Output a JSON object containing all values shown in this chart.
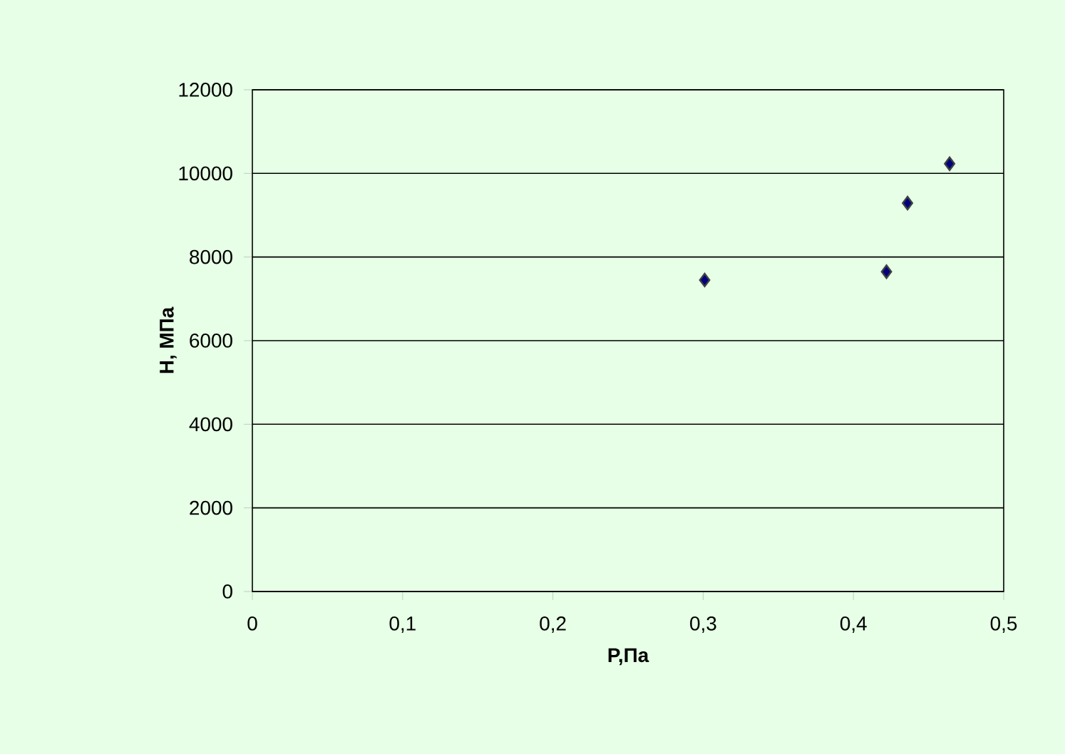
{
  "chart_data": {
    "type": "scatter",
    "xlabel": "P,Па",
    "ylabel": "H, МПа",
    "x": [
      0.301,
      0.422,
      0.436,
      0.464
    ],
    "series": [
      {
        "color": "#000080",
        "values": [
          7450,
          7650,
          9290,
          10230
        ]
      }
    ],
    "marker": "diamond",
    "grid": "y",
    "xlim": [
      0,
      0.5
    ],
    "ylim": [
      0,
      12000
    ],
    "xticks": [
      0,
      {
        "value": 0.1,
        "label": "0,1"
      },
      {
        "value": 0.2,
        "label": "0,2"
      },
      {
        "value": 0.3,
        "label": "0,3"
      },
      {
        "value": 0.4,
        "label": "0,4"
      },
      {
        "value": 0.5,
        "label": "0,5"
      }
    ],
    "yticks": [
      0,
      2000,
      4000,
      6000,
      8000,
      10000,
      12000
    ]
  }
}
